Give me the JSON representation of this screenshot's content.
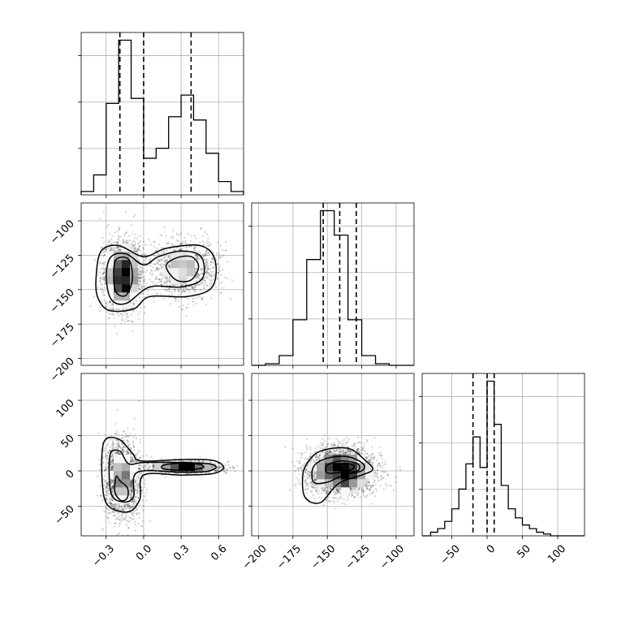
{
  "chart_data": {
    "type": "corner",
    "grid": true,
    "colors": {
      "hist": "#000000",
      "quantile": "#000000",
      "contour": "#000000",
      "points": "#000000",
      "grid": "#b0b0b0"
    },
    "parameters": [
      {
        "name": "",
        "range": [
          -0.5,
          0.8
        ],
        "ticks": [
          -0.3,
          0.0,
          0.3,
          0.6
        ],
        "tick_labels": [
          "−0.3",
          "0.0",
          "0.3",
          "0.6"
        ],
        "quantiles": [
          -0.19,
          0.0,
          0.38
        ],
        "hist_bin_edges": [
          -0.5,
          -0.4,
          -0.3,
          -0.2,
          -0.1,
          0.0,
          0.1,
          0.2,
          0.3,
          0.4,
          0.5,
          0.6,
          0.7,
          0.8
        ],
        "hist_counts": [
          0.02,
          0.12,
          0.55,
          0.93,
          0.58,
          0.22,
          0.28,
          0.47,
          0.6,
          0.45,
          0.25,
          0.08,
          0.02
        ]
      },
      {
        "name": "",
        "range": [
          -205,
          -87
        ],
        "ticks": [
          -200,
          -175,
          -150,
          -125,
          -100
        ],
        "tick_labels": [
          "−200",
          "−175",
          "−150",
          "−125",
          "−100"
        ],
        "quantiles": [
          -153,
          -141,
          -129
        ],
        "hist_bin_edges": [
          -205,
          -195,
          -185,
          -175,
          -165,
          -155,
          -145,
          -135,
          -125,
          -115,
          -105,
          -95,
          -87
        ],
        "hist_counts": [
          0.0,
          0.01,
          0.06,
          0.28,
          0.65,
          0.95,
          0.8,
          0.28,
          0.06,
          0.01,
          0.0,
          0.0
        ]
      },
      {
        "name": "",
        "range": [
          -92,
          138
        ],
        "ticks": [
          -50,
          0,
          50,
          100
        ],
        "tick_labels": [
          "−50",
          "0",
          "50",
          "100"
        ],
        "quantiles": [
          -20,
          0,
          10
        ],
        "hist_bin_edges": [
          -92,
          -80,
          -70,
          -60,
          -50,
          -40,
          -30,
          -20,
          -10,
          0,
          10,
          20,
          30,
          40,
          50,
          60,
          70,
          80,
          90,
          138
        ],
        "hist_counts": [
          0.0,
          0.02,
          0.04,
          0.08,
          0.15,
          0.26,
          0.4,
          0.55,
          0.38,
          0.86,
          0.62,
          0.28,
          0.15,
          0.1,
          0.06,
          0.04,
          0.02,
          0.01,
          0.0
        ]
      }
    ],
    "pairs": [
      {
        "x_param": 0,
        "y_param": 1,
        "modes": [
          {
            "x": -0.17,
            "y": -140,
            "sx": 0.075,
            "sy": 13,
            "weight": 0.62
          },
          {
            "x": 0.33,
            "y": -135,
            "sx": 0.13,
            "sy": 10,
            "weight": 0.38
          }
        ],
        "contour_levels": [
          [
            [
              -0.38,
              -140
            ],
            [
              -0.34,
              -122
            ],
            [
              -0.2,
              -118
            ],
            [
              0.0,
              -126
            ],
            [
              0.18,
              -120
            ],
            [
              0.45,
              -118
            ],
            [
              0.57,
              -128
            ],
            [
              0.55,
              -148
            ],
            [
              0.35,
              -155
            ],
            [
              0.05,
              -155
            ],
            [
              -0.08,
              -164
            ],
            [
              -0.28,
              -165
            ],
            [
              -0.37,
              -155
            ]
          ],
          [
            [
              -0.3,
              -140
            ],
            [
              -0.26,
              -126
            ],
            [
              -0.14,
              -124
            ],
            [
              0.0,
              -132
            ],
            [
              0.12,
              -126
            ],
            [
              0.3,
              -122
            ],
            [
              0.46,
              -126
            ],
            [
              0.47,
              -142
            ],
            [
              0.3,
              -148
            ],
            [
              0.05,
              -148
            ],
            [
              -0.14,
              -160
            ],
            [
              -0.26,
              -157
            ]
          ],
          [
            [
              -0.24,
              -140
            ],
            [
              -0.22,
              -128
            ],
            [
              -0.12,
              -128
            ],
            [
              -0.09,
              -142
            ],
            [
              -0.14,
              -154
            ],
            [
              -0.22,
              -152
            ]
          ],
          [
            [
              0.18,
              -133
            ],
            [
              0.26,
              -127
            ],
            [
              0.38,
              -126
            ],
            [
              0.44,
              -133
            ],
            [
              0.38,
              -143
            ],
            [
              0.26,
              -143
            ]
          ]
        ]
      },
      {
        "x_param": 0,
        "y_param": 2,
        "modes": [
          {
            "x": -0.17,
            "y": -12,
            "sx": 0.07,
            "sy": 26,
            "weight": 0.6
          },
          {
            "x": 0.33,
            "y": 5,
            "sx": 0.14,
            "sy": 4,
            "weight": 0.4
          }
        ],
        "contour_levels": [
          [
            [
              -0.32,
              40
            ],
            [
              -0.2,
              45
            ],
            [
              -0.09,
              25
            ],
            [
              -0.02,
              14
            ],
            [
              0.3,
              16
            ],
            [
              0.55,
              15
            ],
            [
              0.64,
              5
            ],
            [
              0.55,
              -4
            ],
            [
              0.3,
              -6
            ],
            [
              0.0,
              -6
            ],
            [
              -0.03,
              -40
            ],
            [
              -0.12,
              -58
            ],
            [
              -0.28,
              -50
            ],
            [
              -0.33,
              -20
            ]
          ],
          [
            [
              -0.27,
              22
            ],
            [
              -0.19,
              28
            ],
            [
              -0.12,
              10
            ],
            [
              0.0,
              12
            ],
            [
              0.3,
              12
            ],
            [
              0.52,
              10
            ],
            [
              0.58,
              5
            ],
            [
              0.5,
              -1
            ],
            [
              0.3,
              -2
            ],
            [
              -0.05,
              -2
            ],
            [
              -0.08,
              -36
            ],
            [
              -0.16,
              -44
            ],
            [
              -0.26,
              -32
            ]
          ],
          [
            [
              -0.22,
              -8
            ],
            [
              -0.19,
              -14
            ],
            [
              -0.13,
              -24
            ],
            [
              -0.13,
              -38
            ],
            [
              -0.18,
              -42
            ],
            [
              -0.23,
              -30
            ]
          ],
          [
            [
              0.16,
              8
            ],
            [
              0.3,
              11
            ],
            [
              0.45,
              9
            ],
            [
              0.47,
              4
            ],
            [
              0.3,
              1
            ],
            [
              0.16,
              3
            ]
          ]
        ]
      },
      {
        "x_param": 1,
        "y_param": 2,
        "modes": [
          {
            "x": -140,
            "y": 0,
            "sx": 12,
            "sy": 16,
            "weight": 1.0
          }
        ],
        "contour_levels": [
          [
            [
              -165,
              10
            ],
            [
              -155,
              28
            ],
            [
              -135,
              32
            ],
            [
              -122,
              14
            ],
            [
              -117,
              2
            ],
            [
              -125,
              -6
            ],
            [
              -142,
              -18
            ],
            [
              -155,
              -45
            ],
            [
              -166,
              -38
            ],
            [
              -168,
              -10
            ]
          ],
          [
            [
              -160,
              6
            ],
            [
              -150,
              18
            ],
            [
              -135,
              20
            ],
            [
              -124,
              10
            ],
            [
              -125,
              0
            ],
            [
              -138,
              -6
            ],
            [
              -150,
              -16
            ],
            [
              -160,
              -16
            ]
          ],
          [
            [
              -150,
              8
            ],
            [
              -140,
              14
            ],
            [
              -128,
              10
            ],
            [
              -128,
              0
            ],
            [
              -140,
              -2
            ],
            [
              -150,
              -3
            ]
          ],
          [
            [
              -145,
              6
            ],
            [
              -138,
              11
            ],
            [
              -131,
              8
            ],
            [
              -132,
              2
            ],
            [
              -140,
              0
            ]
          ]
        ]
      }
    ]
  }
}
